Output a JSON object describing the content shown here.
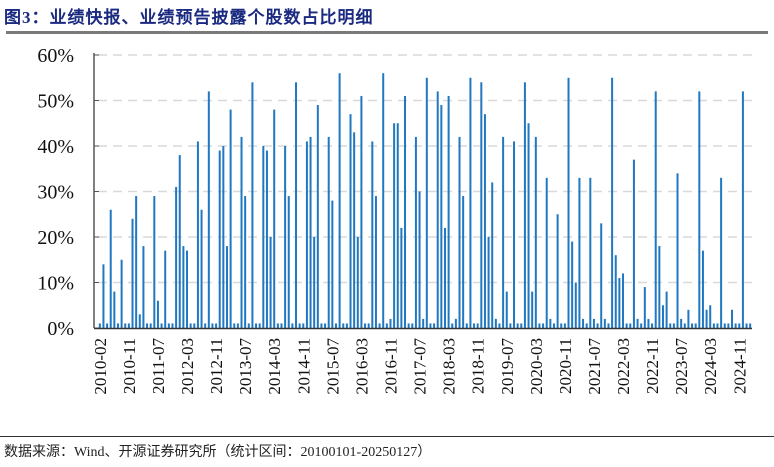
{
  "title": "图3：业绩快报、业绩预告披露个股数占比明细",
  "source": "数据来源：Wind、开源证券研究所（统计区间：20100101-20250127）",
  "colors": {
    "bar": "#1f78c1",
    "title": "#1a2a80",
    "grid": "#d9d9d9",
    "axis": "#555555"
  },
  "chart_data": {
    "type": "bar",
    "title": "业绩快报、业绩预告披露个股数占比明细",
    "xlabel": "",
    "ylabel": "",
    "ylim": [
      0,
      60
    ],
    "yticks": [
      "0%",
      "10%",
      "20%",
      "30%",
      "40%",
      "50%",
      "60%"
    ],
    "grid": "horizontal dashed",
    "legend": "none",
    "x_tick_labels": [
      "2010-02",
      "2010-11",
      "2011-07",
      "2012-03",
      "2012-11",
      "2013-07",
      "2014-03",
      "2014-11",
      "2015-07",
      "2016-03",
      "2016-11",
      "2017-07",
      "2018-03",
      "2018-11",
      "2019-07",
      "2020-03",
      "2020-11",
      "2021-07",
      "2022-03",
      "2022-11",
      "2023-07",
      "2024-03",
      "2024-11"
    ],
    "x_start": "2010-02",
    "x_end": "2025-01",
    "frequency": "monthly",
    "values": [
      1,
      14,
      1,
      26,
      8,
      1,
      15,
      1,
      1,
      24,
      29,
      3,
      18,
      1,
      1,
      29,
      6,
      1,
      17,
      1,
      1,
      31,
      38,
      18,
      17,
      1,
      1,
      41,
      26,
      1,
      52,
      1,
      1,
      39,
      40,
      18,
      48,
      1,
      1,
      42,
      29,
      1,
      54,
      1,
      1,
      40,
      39,
      20,
      48,
      1,
      1,
      40,
      29,
      1,
      54,
      1,
      1,
      41,
      42,
      20,
      49,
      1,
      1,
      42,
      28,
      1,
      56,
      1,
      1,
      47,
      43,
      20,
      51,
      1,
      1,
      41,
      29,
      1,
      56,
      1,
      2,
      45,
      45,
      22,
      51,
      1,
      1,
      42,
      30,
      2,
      55,
      1,
      1,
      52,
      49,
      22,
      51,
      1,
      2,
      42,
      29,
      1,
      55,
      1,
      1,
      54,
      47,
      20,
      32,
      2,
      1,
      42,
      8,
      1,
      41,
      1,
      1,
      54,
      45,
      8,
      42,
      1,
      1,
      33,
      2,
      1,
      25,
      1,
      1,
      55,
      19,
      10,
      33,
      2,
      1,
      33,
      2,
      1,
      23,
      2,
      1,
      55,
      16,
      11,
      12,
      1,
      1,
      37,
      2,
      1,
      9,
      2,
      1,
      52,
      18,
      5,
      8,
      1,
      1,
      34,
      2,
      1,
      4,
      1,
      1,
      52,
      17,
      4,
      5,
      1,
      1,
      33,
      1,
      1,
      4,
      1,
      1,
      52,
      1,
      1
    ]
  }
}
